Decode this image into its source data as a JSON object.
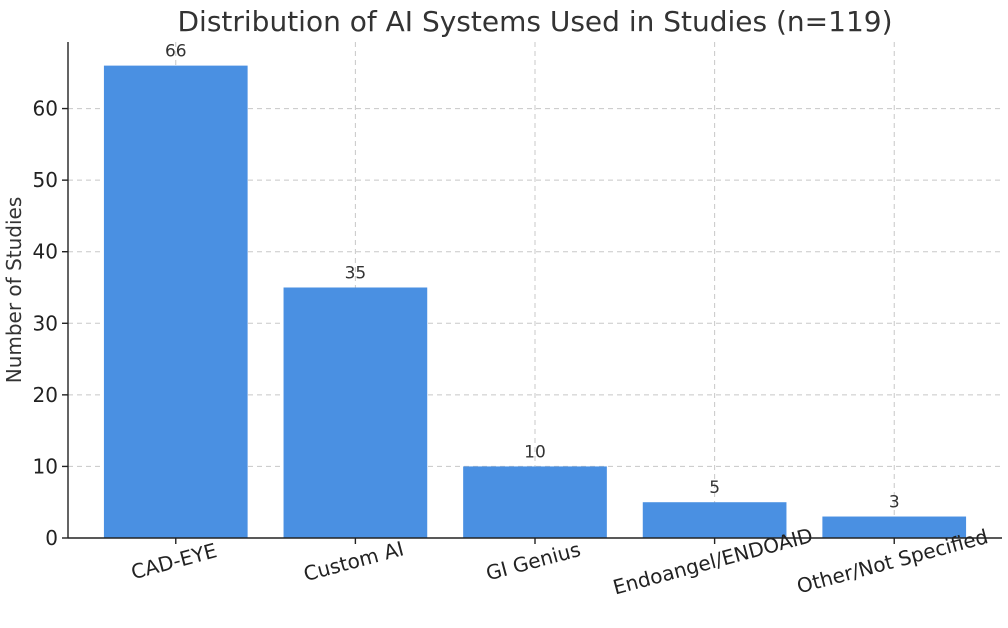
{
  "chart_data": {
    "type": "bar",
    "title": "Distribution of AI Systems Used in Studies (n=119)",
    "xlabel": "",
    "ylabel": "Number of Studies",
    "categories": [
      "CAD-EYE",
      "Custom AI",
      "GI Genius",
      "Endoangel/ENDOAID",
      "Other/Not Specified"
    ],
    "values": [
      66,
      35,
      10,
      5,
      3
    ],
    "data_labels": [
      "66",
      "35",
      "10",
      "5",
      "3"
    ],
    "y_ticks": [
      0,
      10,
      20,
      30,
      40,
      50,
      60
    ],
    "y_tick_labels": [
      "0",
      "10",
      "20",
      "30",
      "40",
      "50",
      "60"
    ],
    "ylim": [
      0,
      69.3
    ],
    "grid": true,
    "bar_color": "#4a90e2",
    "x_tick_rotation_deg": -15
  }
}
